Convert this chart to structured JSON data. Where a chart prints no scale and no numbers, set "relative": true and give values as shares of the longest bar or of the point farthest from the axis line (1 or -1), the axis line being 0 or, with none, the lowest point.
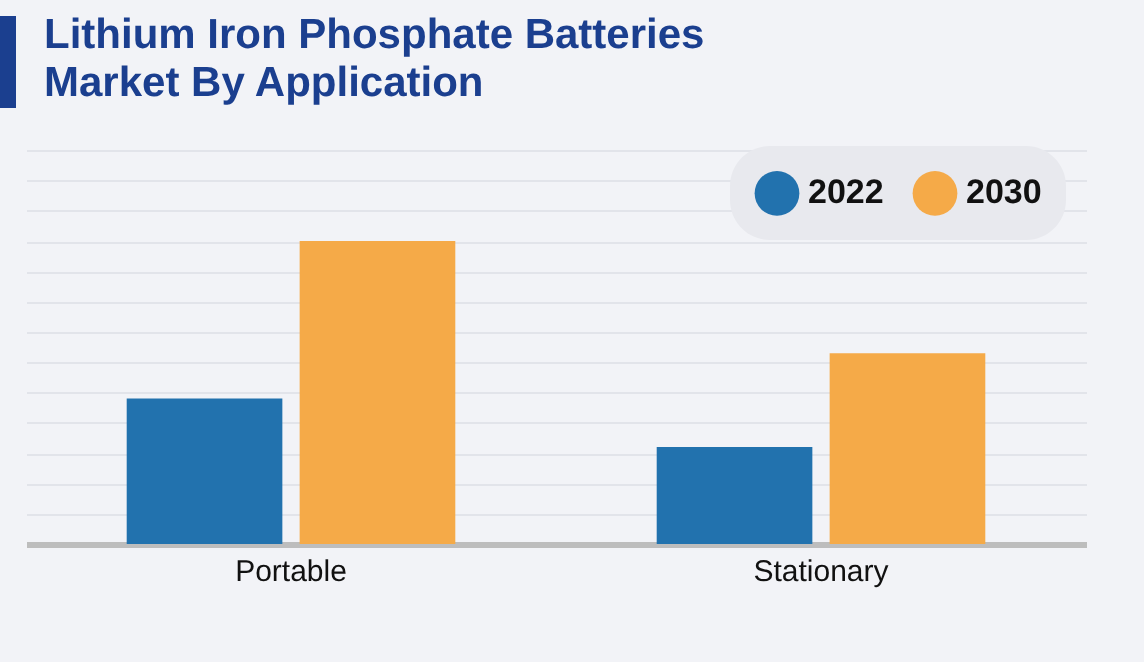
{
  "chart_data": {
    "type": "bar",
    "title": "Lithium Iron Phosphate Batteries Market By Application",
    "categories": [
      "Portable",
      "Stationary"
    ],
    "series": [
      {
        "name": "2022",
        "color": "#2272ae",
        "values": [
          0.48,
          0.32
        ]
      },
      {
        "name": "2030",
        "color": "#f5aa48",
        "values": [
          1,
          0.63
        ]
      }
    ],
    "relative": true,
    "grid": "y",
    "legend": "top right"
  }
}
